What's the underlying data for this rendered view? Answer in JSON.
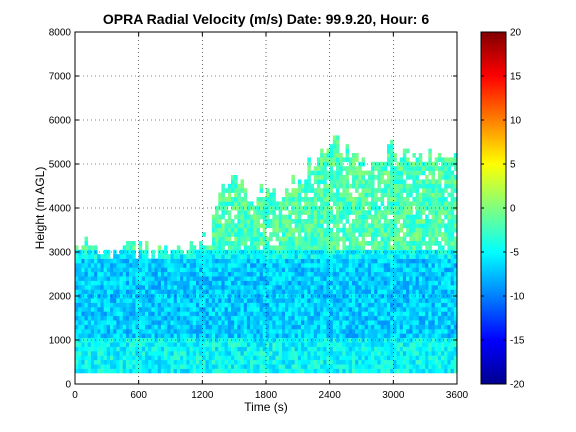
{
  "chart_data": {
    "type": "heatmap",
    "title": "OPRA Radial Velocity (m/s)  Date: 99.9.20, Hour: 6",
    "xlabel": "Time (s)",
    "ylabel": "Height (m AGL)",
    "xlim": [
      0,
      3600
    ],
    "ylim": [
      0,
      8000
    ],
    "xticks": [
      0,
      600,
      1200,
      1800,
      2400,
      3000,
      3600
    ],
    "yticks": [
      0,
      1000,
      2000,
      3000,
      4000,
      5000,
      6000,
      7000,
      8000
    ],
    "grid": true,
    "colormap": "jet",
    "colorbar": {
      "range": [
        -20,
        20
      ],
      "ticks": [
        -20,
        -15,
        -10,
        -5,
        0,
        5,
        10,
        15,
        20
      ]
    },
    "data_bottom_height": 250,
    "echo_top_profile": {
      "time": [
        0,
        100,
        200,
        400,
        600,
        800,
        1000,
        1100,
        1150,
        1200,
        1250,
        1350,
        1450,
        1550,
        1650,
        1750,
        1850,
        1950,
        2050,
        2150,
        2250,
        2350,
        2450,
        2600,
        2800,
        3000,
        3200,
        3400,
        3600
      ],
      "height": [
        3000,
        3250,
        3000,
        3000,
        3000,
        3000,
        3000,
        3000,
        3200,
        3400,
        3000,
        4300,
        4500,
        4600,
        4000,
        4400,
        4300,
        4000,
        4600,
        4700,
        5000,
        5400,
        5500,
        5200,
        5000,
        5300,
        5200,
        5200,
        5300
      ]
    },
    "layers": [
      {
        "height_range": [
          250,
          1000
        ],
        "mean_velocity": -5
      },
      {
        "height_range": [
          1000,
          2800
        ],
        "mean_velocity": -7
      },
      {
        "height_range": [
          2800,
          3000
        ],
        "mean_velocity": -5
      },
      {
        "height_range": [
          3000,
          5500
        ],
        "mean_velocity": -2
      }
    ]
  },
  "colors": {
    "axes_color": "#000000",
    "grid_color": "#000000",
    "background": "#ffffff"
  }
}
